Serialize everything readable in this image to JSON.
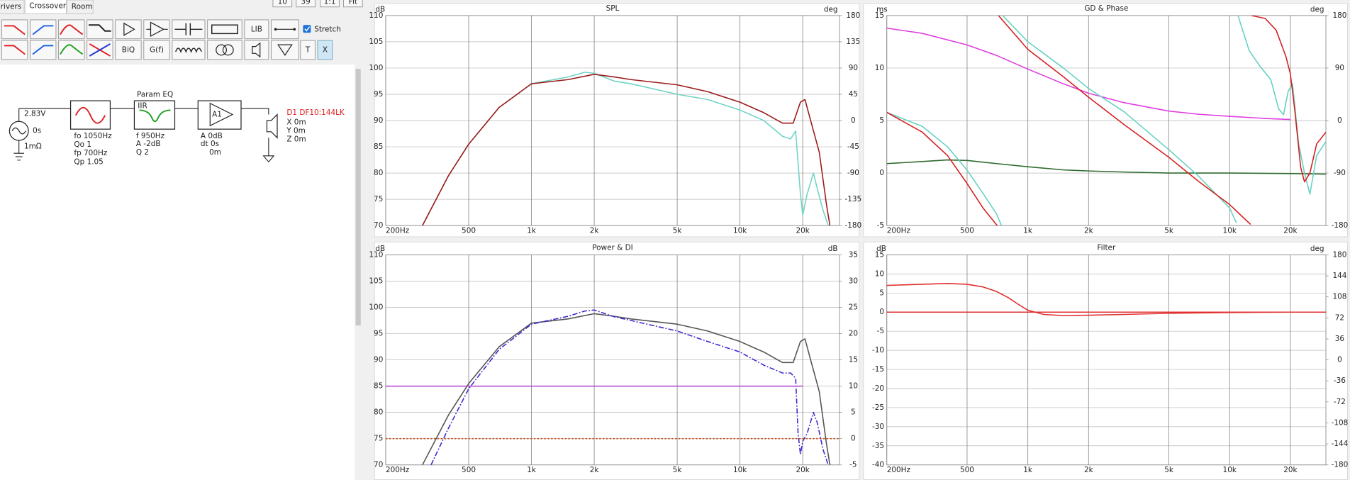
{
  "ui": {
    "tabs": [
      "Drivers",
      "Crossover",
      "Room"
    ],
    "zoom_buttons": [
      "10",
      "39",
      "1:1",
      "Fit"
    ],
    "toolbar": [
      "BiQ",
      "G(f)",
      "LIB",
      "T",
      "X"
    ],
    "stretch": "Stretch",
    "schematic": {
      "source": {
        "voltage": "2.83V",
        "delay": "0s",
        "impedance": "1mΩ"
      },
      "filter": [
        "fo 1050Hz",
        "Qo 1",
        "fp 700Hz",
        "Qp 1.05"
      ],
      "eq": {
        "title": "Param EQ",
        "kind": "IIR",
        "params": [
          "f 950Hz",
          "A -2dB",
          "Q 2"
        ]
      },
      "amp": {
        "label": "A1",
        "params": [
          "A 0dB",
          "dt 0s",
          "0m"
        ]
      },
      "driver": {
        "name": "D1 DF10:144LK",
        "params": [
          "X 0m",
          "Y 0m",
          "Z 0m"
        ]
      }
    }
  },
  "chart_data": [
    {
      "type": "line",
      "title": "SPL",
      "ylabel": "dB",
      "y2label": "deg",
      "xscale": "log",
      "grid": true,
      "xlim": [
        200,
        30000
      ],
      "xticks": [
        {
          "value": 200,
          "label": "200Hz"
        },
        500,
        {
          "value": 1000,
          "label": "1k"
        },
        {
          "value": 2000,
          "label": "2k"
        },
        {
          "value": 5000,
          "label": "5k"
        },
        {
          "value": 10000,
          "label": "10k"
        },
        {
          "value": 20000,
          "label": "20k"
        }
      ],
      "ylim": [
        70,
        110
      ],
      "yticks": [
        70,
        75,
        80,
        85,
        90,
        95,
        100,
        105,
        110
      ],
      "y2lim": [
        -180,
        180
      ],
      "y2ticks": [
        -180,
        -135,
        -90,
        -45,
        0,
        45,
        90,
        135,
        180
      ],
      "series": [
        {
          "color": "#6fd4c6",
          "x": [
            300,
            400,
            500,
            700,
            1000,
            1500,
            1800,
            2000,
            2500,
            3000,
            5000,
            7000,
            10000,
            13000,
            16000,
            17500,
            18500,
            19500,
            20000,
            21000,
            22500,
            23500,
            25000,
            26500
          ],
          "values": [
            70,
            79.5,
            85.5,
            92.5,
            97,
            98.3,
            99.2,
            99,
            97.5,
            97,
            95,
            94,
            92,
            90,
            87,
            86.5,
            88,
            76,
            72,
            76,
            80,
            77,
            73,
            70
          ]
        },
        {
          "color": "#9b1b1b",
          "x": [
            300,
            400,
            500,
            700,
            1000,
            1500,
            2000,
            2500,
            3000,
            5000,
            7000,
            10000,
            13000,
            16000,
            18000,
            19500,
            20500,
            22000,
            24000,
            26000,
            27000
          ],
          "values": [
            70,
            79.5,
            85.5,
            92.5,
            97,
            97.8,
            98.8,
            98.3,
            97.8,
            96.8,
            95.5,
            93.5,
            91.5,
            89.5,
            89.5,
            93.5,
            94,
            89.5,
            84,
            74,
            70
          ]
        }
      ]
    },
    {
      "type": "line",
      "title": "GD & Phase",
      "ylabel": "ms",
      "y2label": "deg",
      "xscale": "log",
      "grid": true,
      "xlim": [
        200,
        30000
      ],
      "xticks": [
        {
          "value": 200,
          "label": "200Hz"
        },
        500,
        {
          "value": 1000,
          "label": "1k"
        },
        {
          "value": 2000,
          "label": "2k"
        },
        {
          "value": 5000,
          "label": "5k"
        },
        {
          "value": 10000,
          "label": "10k"
        },
        {
          "value": 20000,
          "label": "20k"
        }
      ],
      "ylim": [
        -5,
        15
      ],
      "yticks": [
        -5,
        0,
        5,
        10,
        15
      ],
      "y2lim": [
        -180,
        180
      ],
      "y2ticks": [
        -180,
        -90,
        0,
        90,
        180
      ],
      "series": [
        {
          "color": "#e03ee0",
          "x": [
            200,
            300,
            500,
            700,
            1000,
            1500,
            2000,
            3000,
            5000,
            7000,
            10000,
            15000,
            20000
          ],
          "values": [
            13.8,
            13.3,
            12.2,
            11.2,
            9.9,
            8.5,
            7.6,
            6.7,
            5.9,
            5.6,
            5.4,
            5.2,
            5.1
          ]
        },
        {
          "color": "#2f6b2f",
          "x": [
            200,
            300,
            400,
            500,
            700,
            1000,
            1500,
            2000,
            3000,
            5000,
            10000,
            20000,
            30000
          ],
          "values": [
            0.9,
            1.1,
            1.25,
            1.2,
            0.9,
            0.6,
            0.3,
            0.2,
            0.1,
            0,
            0,
            -0.05,
            -0.1
          ]
        },
        {
          "color": "#66d1c2",
          "axis": "y2",
          "x": [
            200,
            300,
            400,
            500,
            600,
            700,
            740,
            745,
            750,
            1000,
            1500,
            2000,
            3000,
            5000,
            7000,
            10000,
            10800,
            10900,
            11000,
            12500,
            14000,
            16000,
            17500,
            18500,
            19500,
            20500,
            22000,
            23500,
            25000,
            27000,
            30000
          ],
          "values": [
            14,
            -10,
            -45,
            -85,
            -125,
            -160,
            -180,
            null,
            180,
            135,
            90,
            55,
            15,
            -50,
            -95,
            -150,
            -175,
            null,
            180,
            120,
            95,
            70,
            20,
            10,
            50,
            63,
            -40,
            -90,
            -126,
            -60,
            -36
          ]
        },
        {
          "color": "#d42020",
          "axis": "y2",
          "x": [
            200,
            300,
            400,
            500,
            600,
            705,
            710,
            715,
            1000,
            1500,
            2000,
            3000,
            5000,
            7000,
            10000,
            12700,
            12750,
            12800,
            15000,
            17000,
            19000,
            20000,
            21000,
            22500,
            23500,
            25000,
            27000,
            30000
          ],
          "values": [
            14,
            -20,
            -60,
            -108,
            -150,
            -180,
            null,
            180,
            122,
            75,
            40,
            -7,
            -63,
            -104,
            -144,
            -178,
            null,
            180,
            175,
            155,
            110,
            80,
            20,
            -80,
            -105,
            -90,
            -40,
            -20
          ]
        }
      ]
    },
    {
      "type": "line",
      "title": "Power & DI",
      "ylabel": "dB",
      "y2label": "dB",
      "xscale": "log",
      "grid": true,
      "xlim": [
        200,
        30000
      ],
      "xticks": [
        {
          "value": 200,
          "label": "200Hz"
        },
        500,
        {
          "value": 1000,
          "label": "1k"
        },
        {
          "value": 2000,
          "label": "2k"
        },
        {
          "value": 5000,
          "label": "5k"
        },
        {
          "value": 10000,
          "label": "10k"
        },
        {
          "value": 20000,
          "label": "20k"
        }
      ],
      "ylim": [
        70,
        110
      ],
      "yticks": [
        70,
        75,
        80,
        85,
        90,
        95,
        100,
        105,
        110
      ],
      "y2lim": [
        -5,
        35
      ],
      "y2ticks": [
        -5,
        0,
        5,
        10,
        15,
        20,
        25,
        30,
        35
      ],
      "series": [
        {
          "color": "#555555",
          "x": [
            300,
            400,
            500,
            700,
            1000,
            1500,
            2000,
            2500,
            3000,
            5000,
            7000,
            10000,
            13000,
            16000,
            18000,
            19500,
            20500,
            22000,
            24000,
            26000,
            27000
          ],
          "values": [
            70,
            79.5,
            85.5,
            92.5,
            97,
            97.8,
            98.8,
            98.3,
            97.8,
            96.8,
            95.5,
            93.5,
            91.5,
            89.5,
            89.5,
            93.5,
            94,
            89.5,
            84,
            74,
            70
          ]
        },
        {
          "color": "#3a2ad0",
          "dash": "dash-dot",
          "x": [
            330,
            400,
            500,
            700,
            1000,
            1500,
            1800,
            2000,
            2500,
            3000,
            5000,
            7000,
            10000,
            13000,
            16000,
            17500,
            18500,
            19000,
            19500,
            20000,
            21000,
            22500,
            23500,
            25000,
            26500
          ],
          "values": [
            70,
            77,
            84.5,
            92,
            96.8,
            98.3,
            99.3,
            99.5,
            98.2,
            97.5,
            95.5,
            93.5,
            91.5,
            89,
            87.5,
            87.5,
            86.5,
            76,
            72,
            74.5,
            76,
            80,
            78,
            73,
            70
          ]
        },
        {
          "color": "#b03fd0",
          "x": [
            200,
            20000
          ],
          "values": [
            85,
            85
          ]
        },
        {
          "color": "#c8501e",
          "axis": "y2",
          "dash": "dotted",
          "x": [
            200,
            30000
          ],
          "values": [
            0,
            0
          ]
        }
      ]
    },
    {
      "type": "line",
      "title": "Filter",
      "ylabel": "dB",
      "y2label": "deg",
      "xscale": "log",
      "grid": true,
      "xlim": [
        200,
        30000
      ],
      "xticks": [
        {
          "value": 200,
          "label": "200Hz"
        },
        500,
        {
          "value": 1000,
          "label": "1k"
        },
        {
          "value": 2000,
          "label": "2k"
        },
        {
          "value": 5000,
          "label": "5k"
        },
        {
          "value": 10000,
          "label": "10k"
        },
        {
          "value": 20000,
          "label": "20k"
        }
      ],
      "ylim": [
        -40,
        15
      ],
      "yticks": [
        -40,
        -35,
        -30,
        -25,
        -20,
        -15,
        -10,
        -5,
        0,
        5,
        10,
        15
      ],
      "y2lim": [
        -180,
        180
      ],
      "y2ticks": [
        -180,
        -144,
        -108,
        -72,
        -36,
        0,
        36,
        72,
        108,
        144,
        180
      ],
      "series": [
        {
          "color": "#e03030",
          "x": [
            200,
            30000
          ],
          "values": [
            0,
            0
          ]
        },
        {
          "color": "#e03030",
          "x": [
            200,
            300,
            400,
            500,
            600,
            700,
            800,
            900,
            1000,
            1200,
            1500,
            2000,
            3000,
            5000,
            10000,
            20000,
            30000
          ],
          "values": [
            7,
            7.3,
            7.5,
            7.3,
            6.6,
            5.4,
            3.8,
            2,
            0.5,
            -0.6,
            -0.9,
            -0.8,
            -0.6,
            -0.3,
            -0.1,
            0,
            0
          ]
        }
      ]
    }
  ]
}
